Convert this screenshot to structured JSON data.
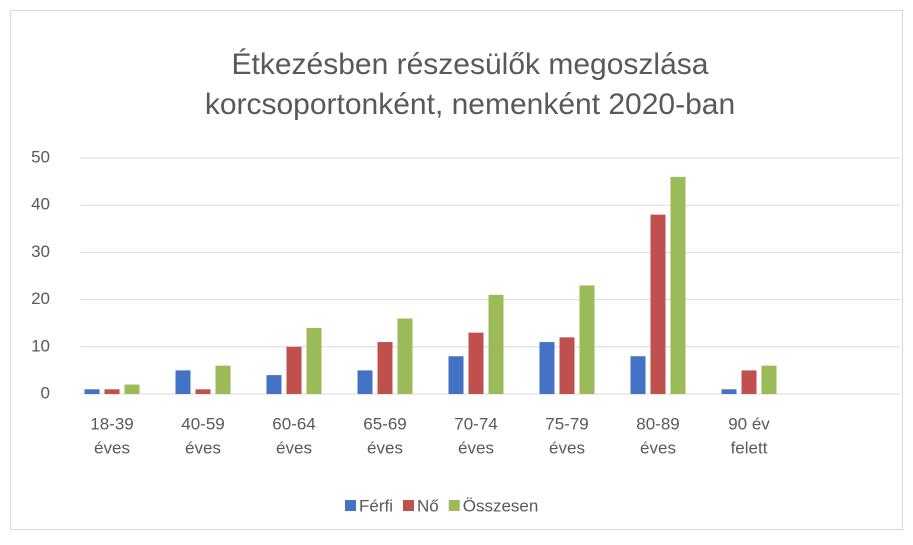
{
  "chart_data": {
    "type": "bar",
    "title": [
      "Étkezésben részesülők megoszlása",
      "korcsoportonként, nemenként 2020-ban"
    ],
    "categories": [
      [
        "18-39",
        "éves"
      ],
      [
        "40-59",
        "éves"
      ],
      [
        "60-64",
        "éves"
      ],
      [
        "65-69",
        "éves"
      ],
      [
        "70-74",
        "éves"
      ],
      [
        "75-79",
        "éves"
      ],
      [
        "80-89",
        "éves"
      ],
      [
        "90 év",
        "felett"
      ],
      null
    ],
    "series": [
      {
        "name": "Férfi",
        "color": "#4472c4",
        "values": [
          1,
          5,
          4,
          5,
          8,
          11,
          8,
          1,
          null
        ]
      },
      {
        "name": "Nő",
        "color": "#c0504d",
        "values": [
          1,
          1,
          10,
          11,
          13,
          12,
          38,
          5,
          null
        ]
      },
      {
        "name": "Összesen",
        "color": "#9bbb59",
        "values": [
          2,
          6,
          14,
          16,
          21,
          23,
          46,
          6,
          null
        ]
      }
    ],
    "ylim": [
      0,
      50
    ],
    "yticks": [
      0,
      10,
      20,
      30,
      40,
      50
    ],
    "grid": true,
    "legend": "bottom"
  }
}
